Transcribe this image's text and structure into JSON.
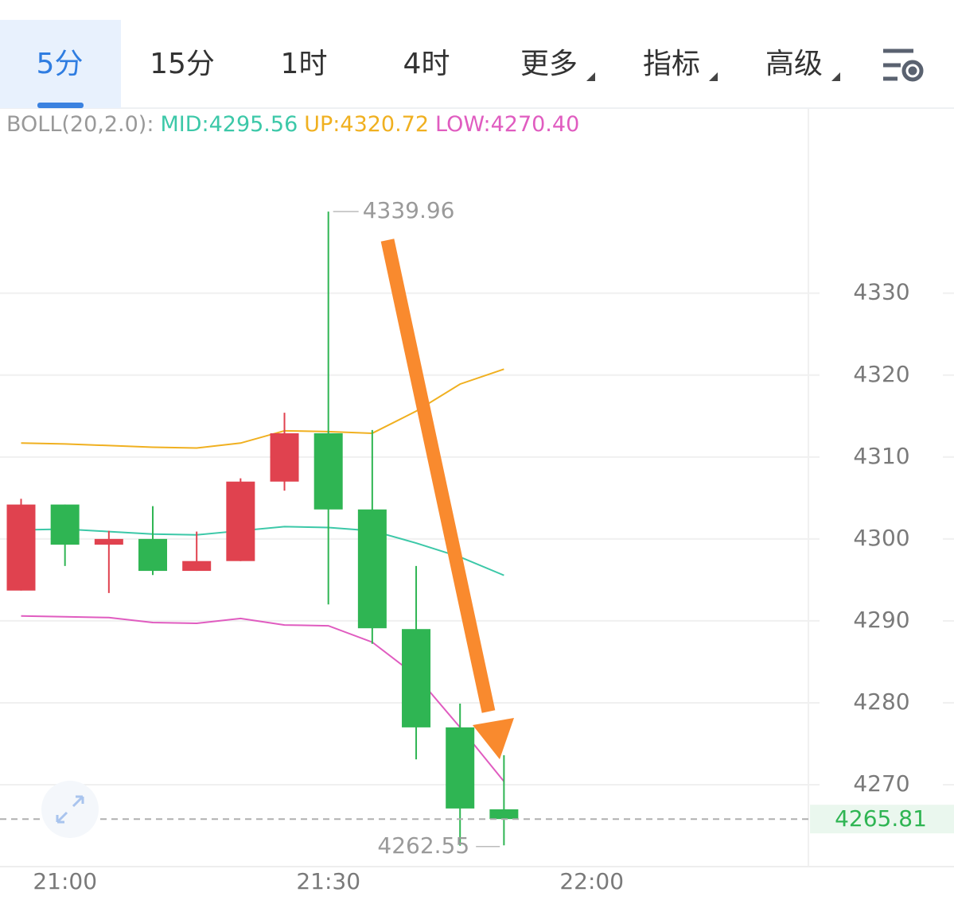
{
  "tabs": [
    {
      "label": "5分",
      "active": true
    },
    {
      "label": "15分"
    },
    {
      "label": "1时"
    },
    {
      "label": "4时"
    },
    {
      "label": "更多",
      "dropdown": true
    },
    {
      "label": "指标",
      "dropdown": true
    },
    {
      "label": "高级",
      "dropdown": true
    }
  ],
  "chart_data": {
    "type": "candlestick",
    "categories": [
      null,
      "21:00",
      null,
      null,
      null,
      null,
      null,
      "21:30",
      null,
      null,
      null,
      null,
      null,
      "22:00"
    ],
    "open": [
      4293.7,
      4304.2,
      4299.3,
      4300.0,
      4296.1,
      4297.3,
      4307.0,
      4312.9,
      4303.6,
      4289.0,
      4277.0,
      4267.0,
      null,
      null
    ],
    "high": [
      4304.9,
      4304.2,
      4301.0,
      4304.0,
      4300.9,
      4307.4,
      4315.4,
      4339.96,
      4313.3,
      4296.7,
      4279.9,
      4273.6,
      null,
      null
    ],
    "low": [
      4293.7,
      4296.7,
      4293.4,
      4295.6,
      4296.1,
      4297.3,
      4305.9,
      4292.0,
      4287.2,
      4273.1,
      4262.55,
      4262.6,
      null,
      null
    ],
    "close": [
      4304.2,
      4299.3,
      4300.0,
      4296.1,
      4297.3,
      4307.0,
      4312.9,
      4303.6,
      4289.1,
      4277.0,
      4267.1,
      4265.81,
      null,
      null
    ],
    "up_color": "#e0424f",
    "down_color": "#2fb553",
    "indicator": "BOLL(20,2.0):",
    "series": [
      {
        "name": "MID:",
        "color": "#3cc8a8",
        "values": [
          4301.1,
          4301.2,
          4300.9,
          4300.6,
          4300.5,
          4301.0,
          4301.5,
          4301.4,
          4301.0,
          4299.5,
          4297.8,
          4295.56,
          null,
          null
        ],
        "value_labels": [
          null,
          null,
          null,
          null,
          null,
          null,
          null,
          null,
          null,
          null,
          null,
          "4295.56",
          null,
          null
        ]
      },
      {
        "name": "UP:",
        "color": "#f0b020",
        "values": [
          4311.7,
          4311.6,
          4311.4,
          4311.2,
          4311.1,
          4311.7,
          4313.2,
          4313.1,
          4312.9,
          4315.6,
          4318.9,
          4320.72,
          null,
          null
        ],
        "value_labels": [
          null,
          null,
          null,
          null,
          null,
          null,
          null,
          null,
          null,
          null,
          null,
          "4320.72",
          null,
          null
        ]
      },
      {
        "name": "LOW:",
        "color": "#e05cc0",
        "values": [
          4290.6,
          4290.5,
          4290.4,
          4289.8,
          4289.7,
          4290.3,
          4289.5,
          4289.4,
          4287.4,
          4283.3,
          4277.0,
          4270.4,
          null,
          null
        ],
        "value_labels": [
          null,
          null,
          null,
          null,
          null,
          null,
          null,
          null,
          null,
          null,
          null,
          "4270.40",
          null,
          null
        ]
      }
    ],
    "ylim": [
      4260.2,
      4348.8
    ],
    "yticks": [
      4270,
      4280,
      4290,
      4300,
      4310,
      4320,
      4330
    ],
    "grid": true
  }
}
